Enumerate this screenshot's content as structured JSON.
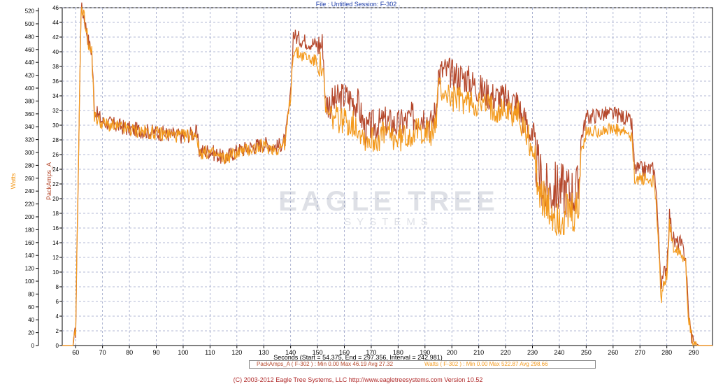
{
  "header": {
    "title": "File : Untitled    Session: F-302  ."
  },
  "axes": {
    "y_left_label": "Watts",
    "y_right_label": "PackAmps_A",
    "x_label": "Seconds (Start = 54.375,  End = 297.356,  Interval = 242.981)"
  },
  "legend": {
    "series1": "PackAmps_A ( F-302 ) : Min 0.00   Max 46.19   Avg 27.32",
    "series2": "Watts ( F-302 ) : Min 0.00   Max 522.87   Avg 298.66"
  },
  "footer": {
    "text": "(C) 2003-2012 Eagle Tree Systems, LLC  http://www.eagletreesystems.com  Version 10.52"
  },
  "watermark": {
    "text1": "EAGLE TREE",
    "text2": "SYSTEMS"
  },
  "colors": {
    "amps": "#b5482c",
    "watts": "#f39a1e",
    "grid": "#9aa3c7",
    "axis": "#000000"
  },
  "chart_data": {
    "type": "line",
    "xlim": [
      55,
      297
    ],
    "x_ticks": [
      60,
      70,
      80,
      90,
      100,
      110,
      120,
      130,
      140,
      150,
      160,
      170,
      180,
      190,
      200,
      210,
      220,
      230,
      240,
      250,
      260,
      270,
      280,
      290
    ],
    "y_left": {
      "label": "Watts",
      "ylim": [
        0,
        525
      ],
      "ticks": [
        0,
        20,
        40,
        60,
        80,
        100,
        120,
        140,
        160,
        180,
        200,
        220,
        240,
        260,
        280,
        300,
        320,
        340,
        360,
        380,
        400,
        420,
        440,
        460,
        480,
        500,
        520
      ]
    },
    "y_right": {
      "label": "PackAmps_A",
      "ylim": [
        0,
        46
      ],
      "ticks": [
        0,
        2,
        4,
        6,
        8,
        10,
        12,
        14,
        16,
        18,
        20,
        22,
        24,
        26,
        28,
        30,
        32,
        34,
        36,
        38,
        40,
        42,
        44,
        46
      ]
    },
    "series": [
      {
        "name": "PackAmps_A",
        "axis": "right",
        "x": [
          55,
          59,
          60,
          61,
          62,
          63,
          64,
          65,
          66,
          67,
          70,
          80,
          90,
          100,
          105,
          106,
          110,
          115,
          120,
          125,
          130,
          135,
          138,
          140,
          141,
          142,
          145,
          150,
          152,
          153,
          155,
          160,
          165,
          168,
          170,
          172,
          175,
          180,
          185,
          190,
          192,
          194,
          195,
          197,
          200,
          205,
          210,
          215,
          220,
          225,
          226,
          228,
          230,
          232,
          235,
          240,
          245,
          247,
          248,
          250,
          255,
          260,
          265,
          267,
          268,
          270,
          275,
          276,
          277,
          278,
          279,
          280,
          281,
          282,
          283,
          285,
          287,
          288,
          289,
          290,
          292,
          297
        ],
        "values": [
          0,
          0,
          2,
          24,
          46,
          45,
          43,
          41,
          40,
          32,
          30.5,
          29.5,
          29,
          28.5,
          29,
          26.5,
          26.5,
          25.5,
          26.5,
          27,
          27.5,
          27,
          28,
          34,
          42.5,
          42,
          41.5,
          41,
          41,
          33,
          33,
          34,
          33,
          29,
          30,
          30,
          30.5,
          30,
          31,
          31.5,
          30,
          32,
          37,
          37.5,
          37,
          36.5,
          35,
          34,
          33.5,
          33,
          31,
          30.5,
          27.5,
          24,
          21,
          21.5,
          21,
          21,
          28,
          31,
          31.5,
          31.5,
          31,
          30,
          24,
          24,
          24,
          22,
          14,
          8,
          10,
          11,
          18,
          15,
          14,
          14,
          12,
          5,
          1.5,
          0.5,
          0,
          0
        ]
      },
      {
        "name": "Watts",
        "axis": "left",
        "x": [
          55,
          59,
          60,
          61,
          62,
          63,
          64,
          65,
          66,
          67,
          70,
          80,
          90,
          100,
          105,
          106,
          110,
          115,
          120,
          125,
          130,
          135,
          138,
          140,
          141,
          142,
          145,
          150,
          152,
          153,
          155,
          160,
          165,
          168,
          170,
          172,
          175,
          180,
          185,
          190,
          192,
          194,
          195,
          197,
          200,
          205,
          210,
          215,
          220,
          225,
          226,
          228,
          230,
          232,
          235,
          240,
          245,
          247,
          248,
          250,
          255,
          260,
          265,
          267,
          268,
          270,
          275,
          276,
          277,
          278,
          279,
          280,
          281,
          282,
          283,
          285,
          287,
          288,
          289,
          290,
          292,
          297
        ],
        "values": [
          0,
          0,
          20,
          280,
          520,
          515,
          490,
          465,
          455,
          355,
          345,
          335,
          330,
          325,
          330,
          300,
          300,
          290,
          300,
          305,
          310,
          305,
          315,
          390,
          460,
          455,
          450,
          440,
          430,
          360,
          355,
          350,
          340,
          320,
          320,
          320,
          330,
          320,
          330,
          335,
          325,
          345,
          400,
          395,
          385,
          380,
          375,
          370,
          365,
          360,
          340,
          330,
          300,
          260,
          210,
          200,
          200,
          200,
          300,
          330,
          335,
          335,
          330,
          320,
          260,
          260,
          255,
          230,
          140,
          70,
          100,
          110,
          190,
          160,
          150,
          150,
          130,
          50,
          15,
          5,
          0,
          0
        ]
      }
    ],
    "grid": true
  }
}
